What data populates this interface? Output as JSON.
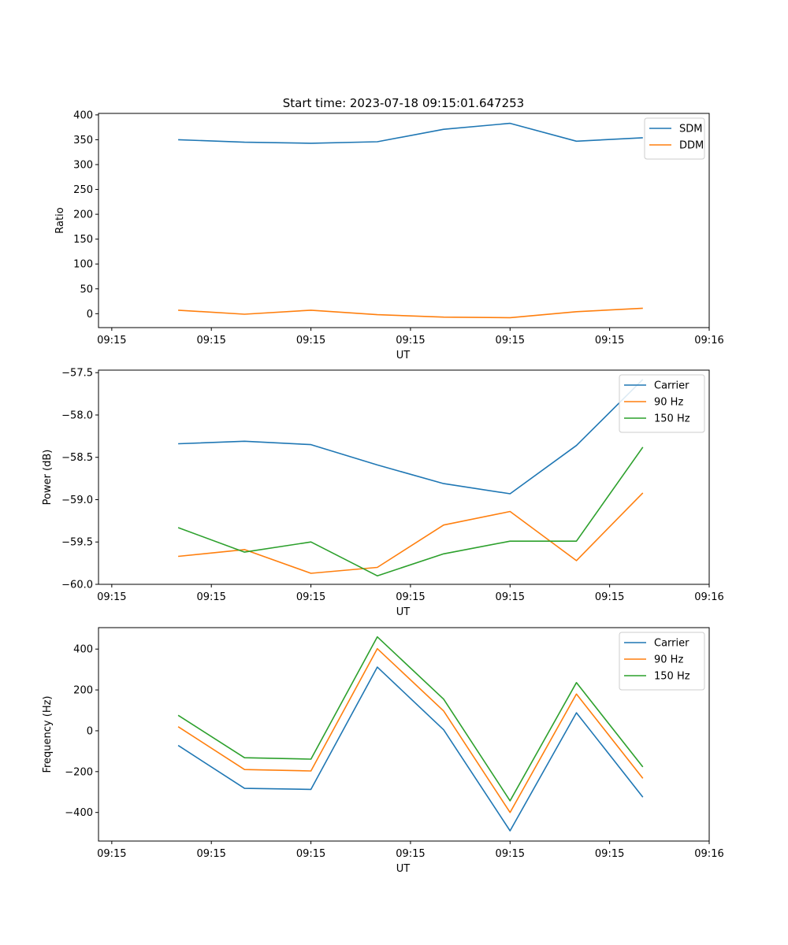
{
  "figure": {
    "title": "Start time: 2023-07-18 09:15:01.647253"
  },
  "colors": {
    "c0": "#1f77b4",
    "c1": "#ff7f0e",
    "c2": "#2ca02c"
  },
  "chart_data": [
    {
      "type": "line",
      "title": "Start time: 2023-07-18 09:15:01.647253",
      "xlabel": "UT",
      "ylabel": "Ratio",
      "x_ticks": [
        "09:15",
        "09:15",
        "09:15",
        "09:15",
        "09:15",
        "09:15",
        "09:16"
      ],
      "x": [
        1,
        2,
        3,
        4,
        5,
        6,
        7,
        8
      ],
      "xlim": [
        -0.2,
        9
      ],
      "ylim": [
        -28,
        403
      ],
      "y_ticks": [
        "400",
        "350",
        "300",
        "250",
        "200",
        "150",
        "100",
        "50",
        "0"
      ],
      "y_tick_values": [
        400,
        350,
        300,
        250,
        200,
        150,
        100,
        50,
        0
      ],
      "series": [
        {
          "name": "SDM",
          "values": [
            350,
            345,
            343,
            346,
            371,
            383,
            347,
            354
          ]
        },
        {
          "name": "DDM",
          "values": [
            7,
            -1,
            7,
            -2,
            -7,
            -8,
            4,
            11
          ]
        }
      ],
      "legend": "upper right"
    },
    {
      "type": "line",
      "title": "",
      "xlabel": "UT",
      "ylabel": "Power (dB)",
      "x_ticks": [
        "09:15",
        "09:15",
        "09:15",
        "09:15",
        "09:15",
        "09:15",
        "09:16"
      ],
      "x": [
        1,
        2,
        3,
        4,
        5,
        6,
        7,
        8
      ],
      "xlim": [
        -0.2,
        9
      ],
      "ylim": [
        -60.0,
        -57.47
      ],
      "y_ticks": [
        "−57.5",
        "−58.0",
        "−58.5",
        "−59.0",
        "−59.5",
        "−60.0"
      ],
      "y_tick_values": [
        -57.5,
        -58.0,
        -58.5,
        -59.0,
        -59.5,
        -60.0
      ],
      "series": [
        {
          "name": "Carrier",
          "values": [
            -58.34,
            -58.31,
            -58.35,
            -58.59,
            -58.81,
            -58.93,
            -58.36,
            -57.58
          ]
        },
        {
          "name": "90 Hz",
          "values": [
            -59.67,
            -59.59,
            -59.87,
            -59.8,
            -59.3,
            -59.14,
            -59.72,
            -58.92
          ]
        },
        {
          "name": "150 Hz",
          "values": [
            -59.33,
            -59.62,
            -59.5,
            -59.9,
            -59.64,
            -59.49,
            -59.49,
            -58.38
          ]
        }
      ],
      "legend": "upper right"
    },
    {
      "type": "line",
      "title": "",
      "xlabel": "UT",
      "ylabel": "Frequency (Hz)",
      "x_ticks": [
        "09:15",
        "09:15",
        "09:15",
        "09:15",
        "09:15",
        "09:15",
        "09:16"
      ],
      "x": [
        1,
        2,
        3,
        4,
        5,
        6,
        7,
        8
      ],
      "xlim": [
        -0.2,
        9
      ],
      "ylim": [
        -540,
        505
      ],
      "y_ticks": [
        "400",
        "200",
        "0",
        "−200",
        "−400"
      ],
      "y_tick_values": [
        400,
        200,
        0,
        -200,
        -400
      ],
      "series": [
        {
          "name": "Carrier",
          "values": [
            -72,
            -282,
            -287,
            312,
            5,
            -490,
            88,
            -325
          ]
        },
        {
          "name": "90 Hz",
          "values": [
            20,
            -190,
            -197,
            402,
            97,
            -400,
            180,
            -233
          ]
        },
        {
          "name": "150 Hz",
          "values": [
            76,
            -132,
            -139,
            460,
            155,
            -343,
            236,
            -177
          ]
        }
      ],
      "legend": "upper right"
    }
  ]
}
